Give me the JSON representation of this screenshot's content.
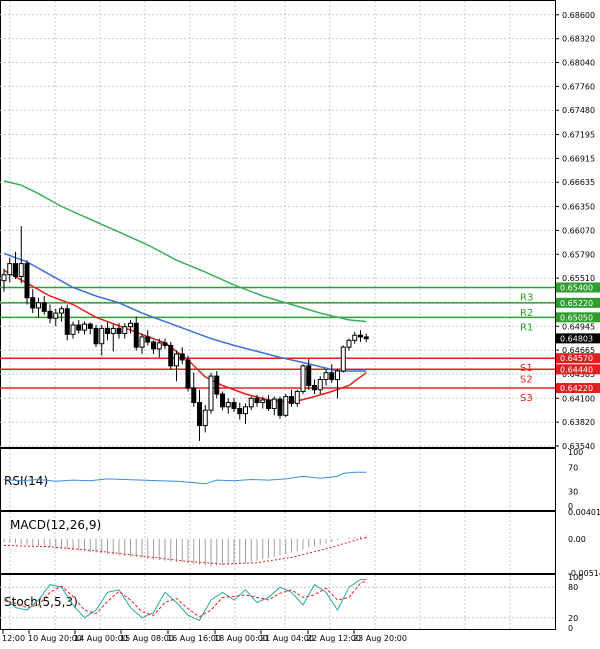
{
  "chart_data": {
    "type": "candlestick",
    "price_axis": {
      "ticks": [
        "0.68600",
        "0.68320",
        "0.68040",
        "0.67760",
        "0.67480",
        "0.67195",
        "0.66915",
        "0.66635",
        "0.66350",
        "0.66070",
        "0.65790",
        "0.65510",
        "0.65230",
        "0.64945",
        "0.64665",
        "0.64385",
        "0.64100",
        "0.63820",
        "0.63540"
      ],
      "min": 0.6354,
      "max": 0.6875
    },
    "time_axis": [
      "12:00",
      "10 Aug 20:00",
      "14 Aug 00:00",
      "15 Aug 08:00",
      "16 Aug 16:00",
      "18 Aug 00:00",
      "21 Aug 04:00",
      "22 Aug 12:00",
      "23 Aug 20:00"
    ],
    "current_price": "0.64803",
    "levels": [
      {
        "name": "R3",
        "value": 0.654,
        "tag": "0.65400",
        "color": "#2e9e2e"
      },
      {
        "name": "R2",
        "value": 0.6522,
        "tag": "0.65220",
        "color": "#2e9e2e"
      },
      {
        "name": "R1",
        "value": 0.6505,
        "tag": "0.65050",
        "color": "#2e9e2e"
      },
      {
        "name": "S1",
        "value": 0.6457,
        "tag": "0.64570",
        "color": "#e02020"
      },
      {
        "name": "S2",
        "value": 0.6444,
        "tag": "0.64440",
        "color": "#e02020"
      },
      {
        "name": "S3",
        "value": 0.6422,
        "tag": "0.64220",
        "color": "#e02020"
      }
    ],
    "candles": [
      [
        0.6548,
        0.6562,
        0.6535,
        0.6555
      ],
      [
        0.6555,
        0.6575,
        0.6546,
        0.6568
      ],
      [
        0.6568,
        0.6582,
        0.655,
        0.6553
      ],
      [
        0.6553,
        0.6612,
        0.6545,
        0.6568
      ],
      [
        0.6568,
        0.6572,
        0.652,
        0.6528
      ],
      [
        0.6528,
        0.6538,
        0.651,
        0.6516
      ],
      [
        0.6516,
        0.6528,
        0.6505,
        0.6522
      ],
      [
        0.6522,
        0.653,
        0.6508,
        0.6512
      ],
      [
        0.6512,
        0.652,
        0.6498,
        0.6504
      ],
      [
        0.6504,
        0.6515,
        0.6495,
        0.651
      ],
      [
        0.651,
        0.6518,
        0.65,
        0.6515
      ],
      [
        0.6515,
        0.652,
        0.6478,
        0.6485
      ],
      [
        0.6485,
        0.65,
        0.648,
        0.6496
      ],
      [
        0.6496,
        0.6502,
        0.6486,
        0.649
      ],
      [
        0.649,
        0.65,
        0.6485,
        0.6497
      ],
      [
        0.6497,
        0.6499,
        0.6485,
        0.6492
      ],
      [
        0.6492,
        0.6496,
        0.647,
        0.6474
      ],
      [
        0.6474,
        0.6496,
        0.646,
        0.6492
      ],
      [
        0.6492,
        0.6499,
        0.6478,
        0.6486
      ],
      [
        0.6486,
        0.6497,
        0.6465,
        0.6492
      ],
      [
        0.6492,
        0.6498,
        0.648,
        0.6486
      ],
      [
        0.6486,
        0.6498,
        0.648,
        0.6494
      ],
      [
        0.6494,
        0.6502,
        0.6486,
        0.6498
      ],
      [
        0.6498,
        0.6506,
        0.6466,
        0.647
      ],
      [
        0.647,
        0.6486,
        0.6462,
        0.6482
      ],
      [
        0.6482,
        0.649,
        0.6472,
        0.6476
      ],
      [
        0.6476,
        0.6478,
        0.6462,
        0.6468
      ],
      [
        0.6468,
        0.648,
        0.6458,
        0.6475
      ],
      [
        0.6475,
        0.648,
        0.6468,
        0.6472
      ],
      [
        0.6472,
        0.6476,
        0.6444,
        0.6448
      ],
      [
        0.6448,
        0.6466,
        0.643,
        0.6462
      ],
      [
        0.6462,
        0.647,
        0.645,
        0.6455
      ],
      [
        0.6455,
        0.646,
        0.6418,
        0.6422
      ],
      [
        0.6422,
        0.644,
        0.64,
        0.6405
      ],
      [
        0.6405,
        0.642,
        0.636,
        0.6378
      ],
      [
        0.6378,
        0.6402,
        0.637,
        0.6396
      ],
      [
        0.6396,
        0.644,
        0.6392,
        0.6436
      ],
      [
        0.6436,
        0.6442,
        0.641,
        0.6415
      ],
      [
        0.6415,
        0.6418,
        0.6396,
        0.64
      ],
      [
        0.64,
        0.641,
        0.6392,
        0.6405
      ],
      [
        0.6405,
        0.641,
        0.6394,
        0.6398
      ],
      [
        0.6398,
        0.6405,
        0.6385,
        0.6392
      ],
      [
        0.6392,
        0.6404,
        0.638,
        0.64
      ],
      [
        0.64,
        0.6412,
        0.6396,
        0.641
      ],
      [
        0.641,
        0.6414,
        0.64,
        0.6405
      ],
      [
        0.6405,
        0.6412,
        0.6398,
        0.6408
      ],
      [
        0.6408,
        0.6414,
        0.6395,
        0.6398
      ],
      [
        0.6398,
        0.6412,
        0.639,
        0.6409
      ],
      [
        0.6409,
        0.6412,
        0.6386,
        0.639
      ],
      [
        0.639,
        0.6415,
        0.6388,
        0.6412
      ],
      [
        0.6412,
        0.642,
        0.64,
        0.6404
      ],
      [
        0.6404,
        0.642,
        0.64,
        0.6418
      ],
      [
        0.6418,
        0.645,
        0.6415,
        0.6448
      ],
      [
        0.6448,
        0.6456,
        0.642,
        0.6425
      ],
      [
        0.6425,
        0.6432,
        0.6415,
        0.642
      ],
      [
        0.642,
        0.6436,
        0.6415,
        0.6432
      ],
      [
        0.6432,
        0.6444,
        0.6425,
        0.644
      ],
      [
        0.644,
        0.645,
        0.6428,
        0.6432
      ],
      [
        0.6432,
        0.6445,
        0.641,
        0.6442
      ],
      [
        0.6442,
        0.6472,
        0.644,
        0.647
      ],
      [
        0.647,
        0.648,
        0.6466,
        0.6478
      ],
      [
        0.6478,
        0.6488,
        0.6474,
        0.6484
      ],
      [
        0.6484,
        0.649,
        0.6476,
        0.6482
      ],
      [
        0.6482,
        0.6486,
        0.6476,
        0.648
      ]
    ],
    "ma_green": [
      [
        0,
        0.6665
      ],
      [
        3,
        0.666
      ],
      [
        6,
        0.665
      ],
      [
        10,
        0.6635
      ],
      [
        15,
        0.662
      ],
      [
        20,
        0.6605
      ],
      [
        25,
        0.659
      ],
      [
        30,
        0.6572
      ],
      [
        35,
        0.6558
      ],
      [
        40,
        0.6543
      ],
      [
        45,
        0.653
      ],
      [
        50,
        0.652
      ],
      [
        55,
        0.651
      ],
      [
        60,
        0.6502
      ],
      [
        63,
        0.65
      ]
    ],
    "ma_blue": [
      [
        0,
        0.658
      ],
      [
        4,
        0.657
      ],
      [
        8,
        0.6555
      ],
      [
        12,
        0.654
      ],
      [
        16,
        0.653
      ],
      [
        20,
        0.6522
      ],
      [
        24,
        0.651
      ],
      [
        28,
        0.65
      ],
      [
        32,
        0.649
      ],
      [
        36,
        0.648
      ],
      [
        40,
        0.6472
      ],
      [
        44,
        0.6465
      ],
      [
        48,
        0.6458
      ],
      [
        52,
        0.6452
      ],
      [
        55,
        0.6447
      ],
      [
        58,
        0.6442
      ],
      [
        63,
        0.6442
      ]
    ],
    "ma_red": [
      [
        0,
        0.656
      ],
      [
        4,
        0.6545
      ],
      [
        8,
        0.653
      ],
      [
        12,
        0.652
      ],
      [
        16,
        0.6505
      ],
      [
        20,
        0.6495
      ],
      [
        24,
        0.6485
      ],
      [
        28,
        0.6475
      ],
      [
        32,
        0.6455
      ],
      [
        35,
        0.6435
      ],
      [
        38,
        0.6425
      ],
      [
        42,
        0.6415
      ],
      [
        46,
        0.6408
      ],
      [
        50,
        0.6405
      ],
      [
        54,
        0.6412
      ],
      [
        57,
        0.6418
      ],
      [
        60,
        0.6425
      ],
      [
        63,
        0.644
      ]
    ],
    "rsi": {
      "title": "RSI(14)",
      "ticks": [
        "70",
        "30"
      ],
      "axis_top": "100",
      "axis_bottom": "0",
      "values": [
        [
          0,
          50
        ],
        [
          3,
          48
        ],
        [
          6,
          50
        ],
        [
          9,
          47
        ],
        [
          12,
          49
        ],
        [
          15,
          48
        ],
        [
          18,
          51
        ],
        [
          21,
          50
        ],
        [
          24,
          49
        ],
        [
          27,
          48
        ],
        [
          30,
          47
        ],
        [
          33,
          45
        ],
        [
          35,
          43
        ],
        [
          37,
          49
        ],
        [
          40,
          48
        ],
        [
          43,
          50
        ],
        [
          46,
          49
        ],
        [
          49,
          51
        ],
        [
          52,
          55
        ],
        [
          55,
          52
        ],
        [
          58,
          55
        ],
        [
          59,
          60
        ],
        [
          61,
          62
        ],
        [
          63,
          62
        ]
      ]
    },
    "macd": {
      "title": "MACD(12,26,9)",
      "ticks": [
        "0.004017",
        "0.00",
        "-0.00514"
      ],
      "hist": [
        -0.0005,
        -0.0006,
        -0.0007,
        -0.0008,
        -0.0009,
        -0.001,
        -0.0011,
        -0.0012,
        -0.0013,
        -0.0014,
        -0.0015,
        -0.0016,
        -0.0017,
        -0.0018,
        -0.0019,
        -0.002,
        -0.0021,
        -0.0022,
        -0.0023,
        -0.0024,
        -0.0025,
        -0.0026,
        -0.0027,
        -0.0028,
        -0.0029,
        -0.003,
        -0.0031,
        -0.0032,
        -0.0033,
        -0.0034,
        -0.0035,
        -0.0036,
        -0.0037,
        -0.0038,
        -0.0039,
        -0.004,
        -0.0041,
        -0.0041,
        -0.004,
        -0.0039,
        -0.0038,
        -0.0037,
        -0.0036,
        -0.0035,
        -0.0033,
        -0.0031,
        -0.0029,
        -0.0027,
        -0.0025,
        -0.0023,
        -0.0021,
        -0.0019,
        -0.0016,
        -0.0013,
        -0.0011,
        -0.0009,
        -0.0007,
        -0.0005,
        -0.0002,
        0.0,
        0.0002,
        0.0003,
        0.0004,
        0.0005
      ],
      "signal": [
        [
          0,
          -0.001
        ],
        [
          8,
          -0.0012
        ],
        [
          16,
          -0.0018
        ],
        [
          24,
          -0.0026
        ],
        [
          32,
          -0.0034
        ],
        [
          38,
          -0.0038
        ],
        [
          44,
          -0.0036
        ],
        [
          50,
          -0.0028
        ],
        [
          56,
          -0.0015
        ],
        [
          60,
          -0.0005
        ],
        [
          63,
          0.0002
        ]
      ]
    },
    "stoch": {
      "title": "Stoch(5,5,3)",
      "ticks": [
        "100",
        "80",
        "20",
        "0"
      ],
      "k": [
        [
          0,
          60
        ],
        [
          2,
          40
        ],
        [
          4,
          35
        ],
        [
          6,
          55
        ],
        [
          8,
          85
        ],
        [
          10,
          80
        ],
        [
          12,
          45
        ],
        [
          14,
          20
        ],
        [
          16,
          35
        ],
        [
          18,
          70
        ],
        [
          20,
          75
        ],
        [
          22,
          40
        ],
        [
          24,
          20
        ],
        [
          26,
          30
        ],
        [
          28,
          70
        ],
        [
          30,
          50
        ],
        [
          32,
          25
        ],
        [
          34,
          15
        ],
        [
          36,
          55
        ],
        [
          38,
          70
        ],
        [
          40,
          55
        ],
        [
          42,
          75
        ],
        [
          44,
          50
        ],
        [
          46,
          60
        ],
        [
          48,
          80
        ],
        [
          50,
          70
        ],
        [
          52,
          45
        ],
        [
          54,
          85
        ],
        [
          56,
          70
        ],
        [
          58,
          35
        ],
        [
          60,
          80
        ],
        [
          62,
          95
        ],
        [
          63,
          95
        ]
      ],
      "d": [
        [
          0,
          55
        ],
        [
          2,
          48
        ],
        [
          4,
          40
        ],
        [
          6,
          45
        ],
        [
          8,
          70
        ],
        [
          10,
          82
        ],
        [
          12,
          62
        ],
        [
          14,
          35
        ],
        [
          16,
          28
        ],
        [
          18,
          52
        ],
        [
          20,
          72
        ],
        [
          22,
          55
        ],
        [
          24,
          32
        ],
        [
          26,
          25
        ],
        [
          28,
          50
        ],
        [
          30,
          58
        ],
        [
          32,
          38
        ],
        [
          34,
          22
        ],
        [
          36,
          35
        ],
        [
          38,
          60
        ],
        [
          40,
          62
        ],
        [
          42,
          65
        ],
        [
          44,
          60
        ],
        [
          46,
          55
        ],
        [
          48,
          68
        ],
        [
          50,
          75
        ],
        [
          52,
          60
        ],
        [
          54,
          65
        ],
        [
          56,
          78
        ],
        [
          58,
          55
        ],
        [
          60,
          60
        ],
        [
          62,
          88
        ],
        [
          63,
          92
        ]
      ]
    }
  }
}
